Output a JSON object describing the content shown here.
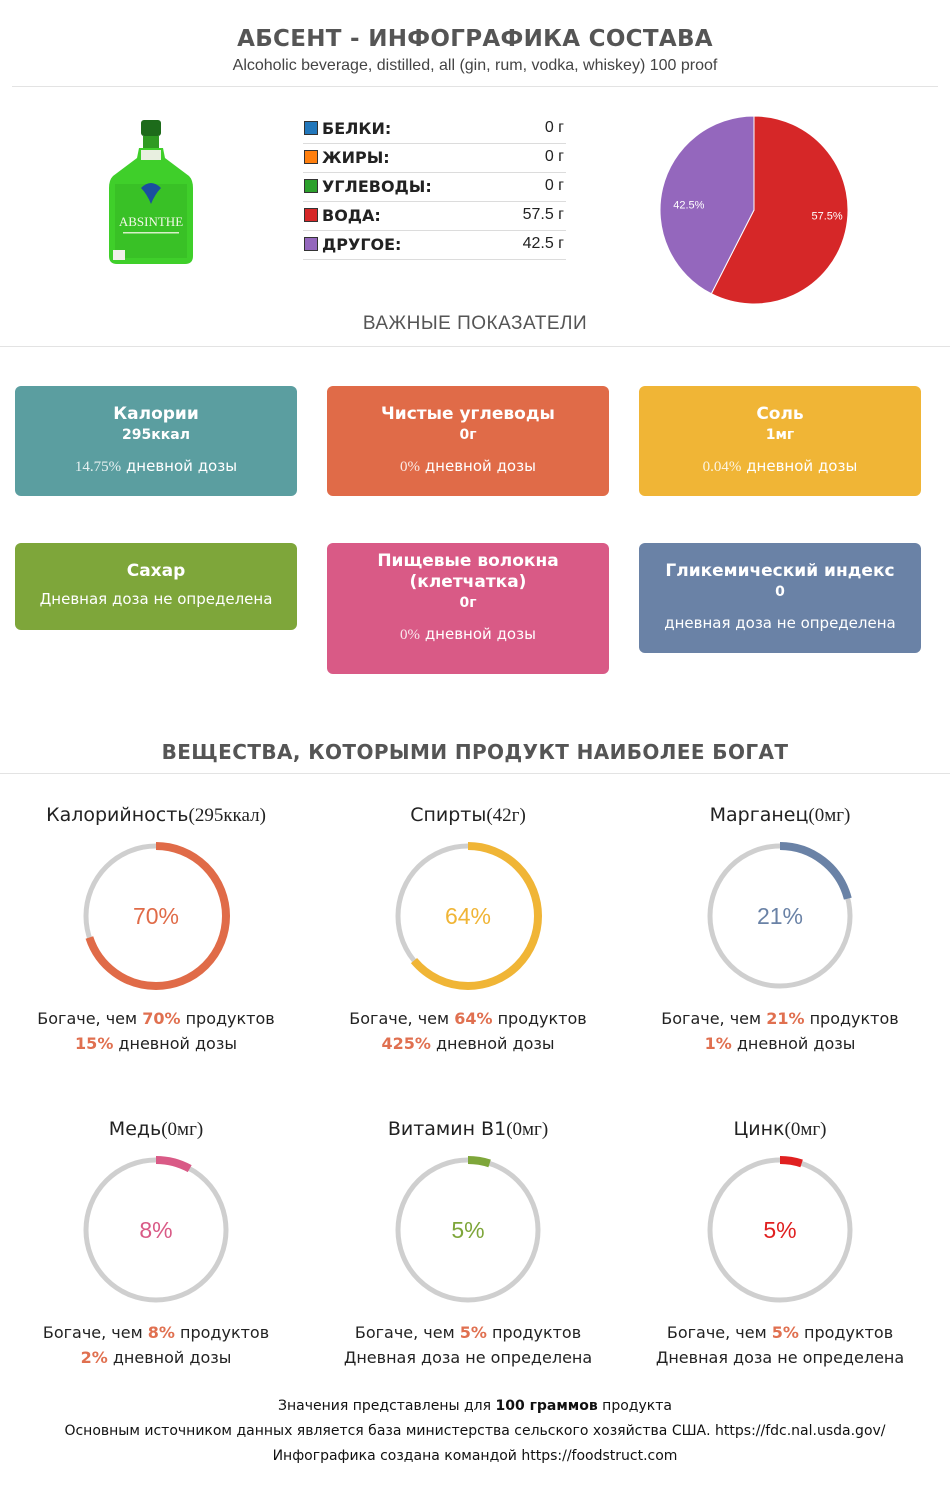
{
  "header": {
    "title": "АБСЕНТ - ИНФОГРАФИКА СОСТАВА",
    "subtitle": "Alcoholic beverage, distilled, all (gin, rum, vodka, whiskey) 100 proof"
  },
  "macros": [
    {
      "label": "БЕЛКИ:",
      "value": "0 г",
      "color": "#2277bb"
    },
    {
      "label": "ЖИРЫ:",
      "value": "0 г",
      "color": "#ff7f0e"
    },
    {
      "label": "УГЛЕВОДЫ:",
      "value": "0 г",
      "color": "#2ca02c"
    },
    {
      "label": "ВОДА:",
      "value": "57.5 г",
      "color": "#d62728"
    },
    {
      "label": "ДРУГОЕ:",
      "value": "42.5 г",
      "color": "#9467bd"
    }
  ],
  "chart_data": {
    "type": "pie",
    "slices": [
      {
        "label": "57.5%",
        "value": 57.5,
        "color": "#d62728"
      },
      {
        "label": "42.5%",
        "value": 42.5,
        "color": "#9467bd"
      }
    ]
  },
  "section1": "ВАЖНЫЕ ПОКАЗАТЕЛИ",
  "cards": [
    {
      "title": "Калории",
      "value": "295ккал",
      "pct": "14.75%",
      "desc": " дневной дозы",
      "color": "#5b9ea0"
    },
    {
      "title": "Чистые углеводы",
      "value": "0г",
      "pct": "0%",
      "desc": " дневной дозы",
      "color": "#e06b48"
    },
    {
      "title": "Соль",
      "value": "1мг",
      "pct": "0.04%",
      "desc": " дневной дозы",
      "color": "#f0b536"
    },
    {
      "title": "Сахар",
      "value": "",
      "pct": "",
      "desc": "Дневная доза не определена",
      "color": "#7ea63a"
    },
    {
      "title": "Пищевые волокна (клетчатка)",
      "value": "0г",
      "pct": "0%",
      "desc": " дневной дозы",
      "color": "#d95a86"
    },
    {
      "title": "Гликемический индекс",
      "value": "0",
      "pct": "",
      "desc": "дневная доза не определена",
      "color": "#6a82a6"
    }
  ],
  "section2": "ВЕЩЕСТВА, КОТОРЫМИ ПРОДУКТ НАИБОЛЕЕ БОГАТ",
  "gauges": [
    {
      "name": "Калорийность",
      "amount": "(295ккал)",
      "percent": 70,
      "label": "70%",
      "color": "#e06b48",
      "richer_prefix": "Богаче, чем ",
      "richer_value": "70%",
      "richer_suffix": " продуктов",
      "daily_value": "15%",
      "daily_suffix": " дневной дозы"
    },
    {
      "name": "Спирты",
      "amount": "(42г)",
      "percent": 64,
      "label": "64%",
      "color": "#f0b536",
      "richer_prefix": "Богаче, чем ",
      "richer_value": "64%",
      "richer_suffix": " продуктов",
      "daily_value": "425%",
      "daily_suffix": " дневной дозы"
    },
    {
      "name": "Марганец",
      "amount": "(0мг)",
      "percent": 21,
      "label": "21%",
      "color": "#6a82a6",
      "richer_prefix": "Богаче, чем ",
      "richer_value": "21%",
      "richer_suffix": " продуктов",
      "daily_value": "1%",
      "daily_suffix": " дневной дозы"
    },
    {
      "name": "Медь",
      "amount": "(0мг)",
      "percent": 8,
      "label": "8%",
      "color": "#d95a86",
      "richer_prefix": "Богаче, чем ",
      "richer_value": "8%",
      "richer_suffix": " продуктов",
      "daily_value": "2%",
      "daily_suffix": " дневной дозы"
    },
    {
      "name": "Витамин B1",
      "amount": "(0мг)",
      "percent": 5,
      "label": "5%",
      "color": "#7ea63a",
      "richer_prefix": "Богаче, чем ",
      "richer_value": "5%",
      "richer_suffix": " продуктов",
      "daily_value": "",
      "daily_suffix": "Дневная доза не определена"
    },
    {
      "name": "Цинк",
      "amount": "(0мг)",
      "percent": 5,
      "label": "5%",
      "color": "#e02020",
      "richer_prefix": "Богаче, чем ",
      "richer_value": "5%",
      "richer_suffix": " продуктов",
      "daily_value": "",
      "daily_suffix": "Дневная доза не определена"
    }
  ],
  "footer": {
    "line1_pre": "Значения представлены для ",
    "line1_bold": "100 граммов",
    "line1_post": " продукта",
    "line2": "Основным источником данных является база министерства сельского хозяйства США. https://fdc.nal.usda.gov/",
    "line3": "Инфографика создана командой https://foodstruct.com"
  },
  "bottle_label": "ABSINTHE"
}
